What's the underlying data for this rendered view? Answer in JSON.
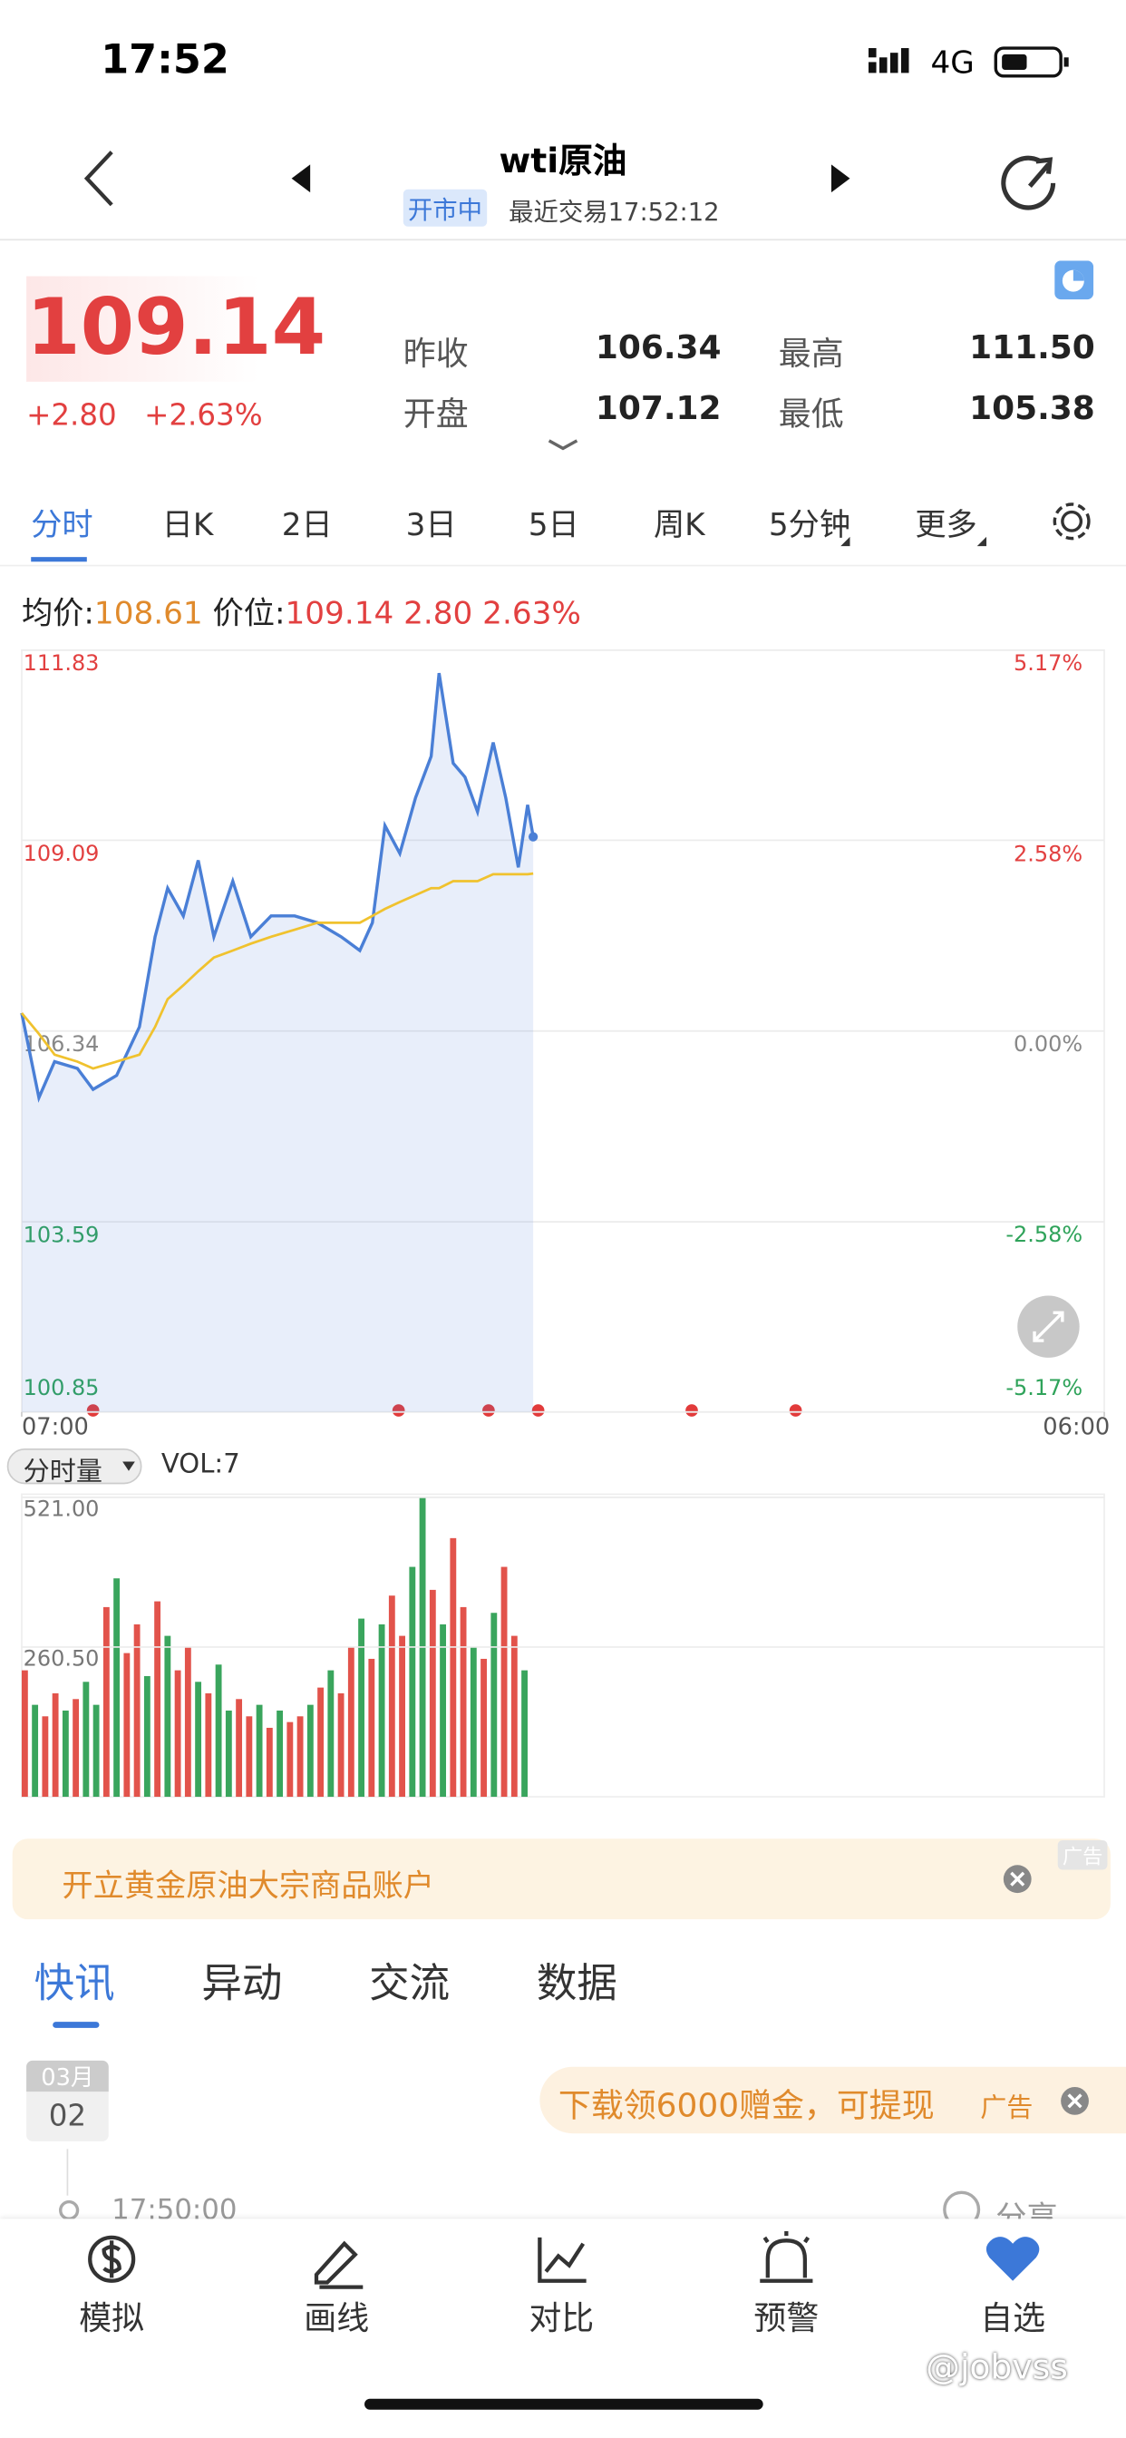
{
  "status": {
    "time": "17:52",
    "network": "4G"
  },
  "header": {
    "title": "wti原油",
    "state": "开市中",
    "last_trade": "最近交易17:52:12"
  },
  "quote": {
    "price": "109.14",
    "change": "+2.80",
    "change_pct": "+2.63%",
    "stats": [
      {
        "label": "昨收",
        "value": "106.34"
      },
      {
        "label": "最高",
        "value": "111.50"
      },
      {
        "label": "开盘",
        "value": "107.12"
      },
      {
        "label": "最低",
        "value": "105.38"
      }
    ]
  },
  "tabs": [
    "分时",
    "日K",
    "2日",
    "3日",
    "5日",
    "周K",
    "5分钟",
    "更多"
  ],
  "info": {
    "avg": "108.61",
    "price": "109.14",
    "change": "2.80",
    "pct": "2.63%"
  },
  "chart_data": [
    {
      "type": "line",
      "x": [
        0,
        22,
        42,
        71,
        91,
        121,
        150,
        170,
        186,
        206,
        225,
        245,
        269,
        292,
        318,
        348,
        377,
        407,
        431,
        447,
        463,
        482,
        502,
        522,
        532,
        550,
        565,
        581,
        601,
        617,
        633,
        645,
        652
      ],
      "xlim": [
        0,
        1380
      ],
      "xticks": [
        {
          "value": 0,
          "label": "07:00"
        },
        {
          "value": 1380,
          "label": "06:00"
        }
      ],
      "ylim": [
        100.85,
        111.83
      ],
      "yticks": [
        111.83,
        109.09,
        106.34,
        103.59,
        100.85
      ],
      "y2lim": [
        -5.17,
        5.17
      ],
      "y2ticks": [
        {
          "value": 5.17,
          "label": "5.17%"
        },
        {
          "value": 2.58,
          "label": "2.58%"
        },
        {
          "value": 0,
          "label": "0.00%"
        },
        {
          "value": -2.58,
          "label": "-2.58%"
        },
        {
          "value": -5.17,
          "label": "-5.17%"
        }
      ],
      "grid": true,
      "series": [
        {
          "name": "价位:",
          "color": "#4a7fd6",
          "values": [
            106.6,
            105.38,
            105.9,
            105.8,
            105.5,
            105.7,
            106.4,
            107.7,
            108.4,
            108.0,
            108.8,
            107.7,
            108.5,
            107.7,
            108.0,
            108.0,
            107.9,
            107.7,
            107.5,
            107.9,
            109.3,
            108.9,
            109.7,
            110.3,
            111.5,
            110.2,
            110.0,
            109.5,
            110.5,
            109.7,
            108.7,
            109.6,
            109.14
          ]
        },
        {
          "name": "均价:",
          "color": "#f0c22e",
          "values": [
            106.6,
            106.3,
            106.0,
            105.9,
            105.8,
            105.9,
            106.0,
            106.4,
            106.8,
            107.0,
            107.2,
            107.4,
            107.5,
            107.6,
            107.7,
            107.8,
            107.9,
            107.9,
            107.9,
            108.0,
            108.1,
            108.2,
            108.3,
            108.4,
            108.4,
            108.5,
            108.5,
            108.5,
            108.6,
            108.6,
            108.6,
            108.6,
            108.61
          ]
        }
      ]
    },
    {
      "type": "bar",
      "title": "分时量",
      "label": "VOL:7",
      "x": [
        0,
        13,
        26,
        39,
        52,
        65,
        78,
        91,
        104,
        117,
        130,
        143,
        156,
        169,
        182,
        195,
        208,
        221,
        234,
        247,
        260,
        273,
        286,
        299,
        312,
        325,
        338,
        351,
        364,
        377,
        390,
        403,
        416,
        429,
        442,
        455,
        468,
        481,
        494,
        507,
        520,
        533,
        546,
        559,
        572,
        585,
        598,
        611,
        624,
        637
      ],
      "xlim": [
        0,
        1380
      ],
      "ylim": [
        0,
        521
      ],
      "yticks": [
        {
          "value": 521,
          "label": "521.00"
        },
        {
          "value": 260.5,
          "label": "260.50"
        }
      ],
      "series": [
        {
          "values": [
            220,
            160,
            140,
            180,
            150,
            170,
            200,
            160,
            330,
            380,
            250,
            300,
            210,
            340,
            280,
            220,
            260,
            200,
            180,
            230,
            150,
            170,
            140,
            160,
            120,
            150,
            130,
            140,
            160,
            190,
            220,
            180,
            260,
            310,
            240,
            300,
            350,
            280,
            400,
            520,
            360,
            300,
            450,
            330,
            260,
            240,
            320,
            400,
            280,
            220
          ],
          "colors": [
            "#e2534b",
            "#3aa55d",
            "#e2534b",
            "#e2534b",
            "#3aa55d",
            "#e2534b",
            "#3aa55d",
            "#3aa55d",
            "#e2534b",
            "#3aa55d",
            "#e2534b",
            "#e2534b",
            "#3aa55d",
            "#e2534b",
            "#3aa55d",
            "#e2534b",
            "#e2534b",
            "#3aa55d",
            "#e2534b",
            "#3aa55d",
            "#3aa55d",
            "#e2534b",
            "#e2534b",
            "#3aa55d",
            "#e2534b",
            "#3aa55d",
            "#e2534b",
            "#e2534b",
            "#3aa55d",
            "#e2534b",
            "#3aa55d",
            "#e2534b",
            "#e2534b",
            "#3aa55d",
            "#e2534b",
            "#3aa55d",
            "#e2534b",
            "#e2534b",
            "#3aa55d",
            "#3aa55d",
            "#e2534b",
            "#3aa55d",
            "#e2534b",
            "#e2534b",
            "#3aa55d",
            "#e2534b",
            "#3aa55d",
            "#e2534b",
            "#e2534b",
            "#3aa55d"
          ]
        }
      ]
    }
  ],
  "ad": {
    "text": "开立黄金原油大宗商品账户",
    "tag": "广告"
  },
  "news_tabs": [
    "快讯",
    "异动",
    "交流",
    "数据"
  ],
  "news": {
    "month": "03月",
    "day": "02",
    "promo": "下载领6000赠金，可提现",
    "promo_tag": "广告",
    "time": "17:50:00",
    "share": "分享"
  },
  "nav": [
    "模拟",
    "画线",
    "对比",
    "预警",
    "自选"
  ],
  "watermark": "@jobvss"
}
